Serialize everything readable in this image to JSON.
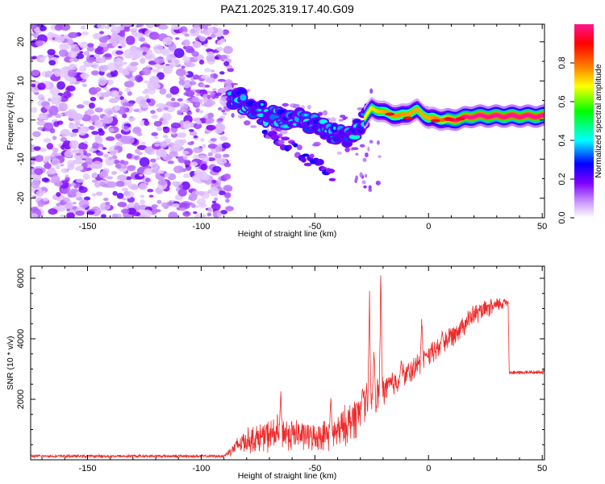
{
  "title": "PAZ1.2025.319.17.40.G09",
  "chart_data": [
    {
      "type": "heatmap",
      "name": "spectrogram",
      "xlabel": "Height of straight line (km)",
      "ylabel": "Frequency (Hz)",
      "xlim": [
        -175,
        51
      ],
      "ylim": [
        -25,
        24.5
      ],
      "xticks": [
        -150,
        -100,
        -50,
        0,
        50
      ],
      "xtick_labels": [
        "-150",
        "-100",
        "-50",
        "0",
        "50"
      ],
      "yticks": [
        -20,
        -10,
        0,
        10,
        20
      ],
      "ytick_labels": [
        "-20",
        "-10",
        "0",
        "10",
        "20"
      ],
      "colorbar": {
        "label": "Normalized spectral amplitude",
        "range": [
          0,
          1
        ],
        "ticks": [
          0.0,
          0.2,
          0.4,
          0.6,
          0.8
        ],
        "tick_labels": [
          "0.0",
          "0.2",
          "0.4",
          "0.6",
          "0.8"
        ],
        "colors": [
          "#ffffff",
          "#cc99ff",
          "#7f00ff",
          "#0000ff",
          "#00ffff",
          "#00ff00",
          "#ffff00",
          "#ff8000",
          "#ff0000",
          "#ff1493"
        ]
      },
      "noise_region_x": [
        -175,
        -87
      ],
      "ridge": [
        {
          "x": -87,
          "y": 6.5,
          "a": 0.35
        },
        {
          "x": -80,
          "y": 4.0,
          "a": 0.35
        },
        {
          "x": -72,
          "y": 1.5,
          "a": 0.35
        },
        {
          "x": -65,
          "y": 0.5,
          "a": 0.35
        },
        {
          "x": -58,
          "y": 0.0,
          "a": 0.35
        },
        {
          "x": -50,
          "y": -1.5,
          "a": 0.35
        },
        {
          "x": -42,
          "y": -3.0,
          "a": 0.35
        },
        {
          "x": -35,
          "y": -4.5,
          "a": 0.35
        },
        {
          "x": -30,
          "y": -1.0,
          "a": 0.4
        },
        {
          "x": -25,
          "y": 3.0,
          "a": 0.45
        },
        {
          "x": -20,
          "y": 2.0,
          "a": 0.55
        },
        {
          "x": -13,
          "y": 1.0,
          "a": 0.6
        },
        {
          "x": -5,
          "y": 2.5,
          "a": 0.55
        },
        {
          "x": 0,
          "y": 0.5,
          "a": 0.55
        },
        {
          "x": 10,
          "y": 0.0,
          "a": 0.75
        },
        {
          "x": 20,
          "y": 1.0,
          "a": 0.85
        },
        {
          "x": 35,
          "y": 1.0,
          "a": 0.9
        },
        {
          "x": 51,
          "y": 1.0,
          "a": 0.9
        }
      ],
      "branch": [
        {
          "x": -72,
          "y": -3.0
        },
        {
          "x": -60,
          "y": -7.0
        },
        {
          "x": -48,
          "y": -12.0
        },
        {
          "x": -42,
          "y": -14.0
        }
      ]
    },
    {
      "type": "line",
      "name": "snr",
      "xlabel": "Height of straight line (km)",
      "ylabel": "SNR (10 * v/v)",
      "xlim": [
        -175,
        51
      ],
      "ylim": [
        0,
        6400
      ],
      "xticks": [
        -150,
        -100,
        -50,
        0,
        50
      ],
      "xtick_labels": [
        "-150",
        "-100",
        "-50",
        "0",
        "50"
      ],
      "yticks": [
        2000,
        4000,
        6000
      ],
      "ytick_labels": [
        "2000",
        "4000",
        "6000"
      ],
      "color": "#ee2b2b",
      "envelope": [
        {
          "x": -175,
          "base": 120,
          "noise": 60
        },
        {
          "x": -90,
          "base": 120,
          "noise": 60
        },
        {
          "x": -82,
          "base": 600,
          "noise": 450
        },
        {
          "x": -65,
          "base": 900,
          "noise": 700
        },
        {
          "x": -50,
          "base": 750,
          "noise": 500
        },
        {
          "x": -40,
          "base": 900,
          "noise": 700
        },
        {
          "x": -30,
          "base": 1600,
          "noise": 900
        },
        {
          "x": -20,
          "base": 2300,
          "noise": 600
        },
        {
          "x": -10,
          "base": 2800,
          "noise": 500
        },
        {
          "x": 0,
          "base": 3400,
          "noise": 450
        },
        {
          "x": 10,
          "base": 4100,
          "noise": 450
        },
        {
          "x": 20,
          "base": 4800,
          "noise": 400
        },
        {
          "x": 35,
          "base": 5250,
          "noise": 250
        },
        {
          "x": 35.5,
          "base": 2880,
          "noise": 80
        },
        {
          "x": 51,
          "base": 2900,
          "noise": 80
        }
      ],
      "spikes": [
        {
          "x": -65,
          "y": 2350
        },
        {
          "x": -43,
          "y": 2200
        },
        {
          "x": -29,
          "y": 2600
        },
        {
          "x": -26,
          "y": 5950
        },
        {
          "x": -24,
          "y": 3800
        },
        {
          "x": -21,
          "y": 6400
        },
        {
          "x": -12,
          "y": 3400
        },
        {
          "x": -3,
          "y": 4900
        },
        {
          "x": -1,
          "y": 3500
        },
        {
          "x": 6,
          "y": 4300
        }
      ]
    }
  ]
}
